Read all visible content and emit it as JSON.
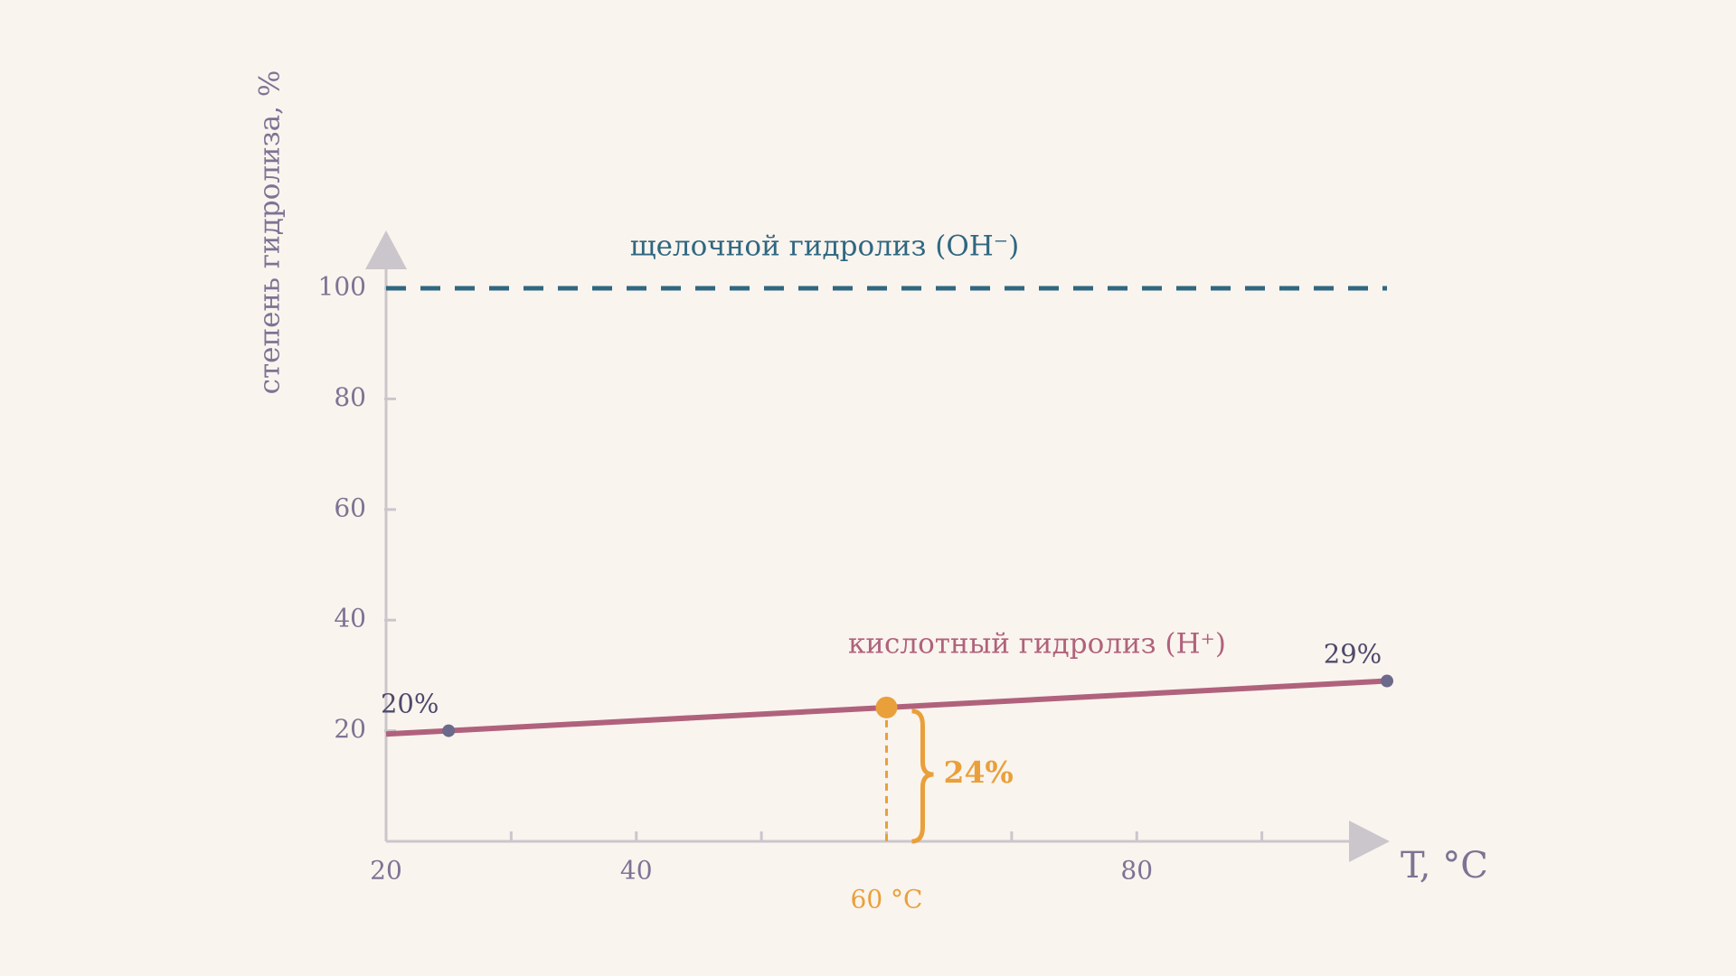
{
  "chart_data": {
    "type": "line",
    "xlabel": "T, °C",
    "ylabel": "степень гидролиза, %",
    "xlim": [
      20,
      100
    ],
    "ylim": [
      0,
      100
    ],
    "xticks": [
      20,
      40,
      80
    ],
    "minor_xticks": [
      30,
      50,
      60,
      70,
      90
    ],
    "yticks": [
      20,
      40,
      60,
      80,
      100
    ],
    "series": [
      {
        "name": "кислотный гидролиз (H⁺)",
        "color": "#b0627c",
        "x": [
          20,
          25,
          100
        ],
        "values": [
          19.4,
          20,
          29
        ],
        "value_labels": [
          null,
          "20%",
          "29%"
        ],
        "dashed": false
      },
      {
        "name": "щелочной гидролиз (OH⁻)",
        "color": "#2f6781",
        "x": [
          20,
          100
        ],
        "values": [
          100,
          100
        ],
        "dashed": true
      }
    ],
    "highlight": {
      "x": 60,
      "value": 24.2,
      "label": "24%",
      "x_label": "60 °C",
      "color": "#e9a03a"
    }
  }
}
